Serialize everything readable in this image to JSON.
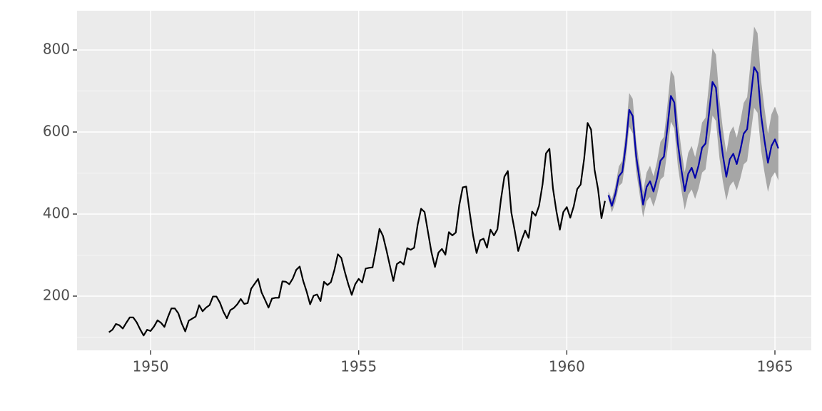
{
  "chart_data": {
    "type": "line",
    "xlim": [
      1948.234,
      1965.874
    ],
    "ylim": [
      67.8,
      895.7
    ],
    "xticks": [
      1950,
      1955,
      1960,
      1965
    ],
    "yticks": [
      200,
      400,
      600,
      800
    ],
    "xminor": [
      1952.5,
      1957.5,
      1962.5
    ],
    "yminor": [
      100,
      300,
      500,
      700
    ],
    "grid": true,
    "series": [
      {
        "color": "#000000",
        "x": [
          1949,
          1949.083,
          1949.167,
          1949.25,
          1949.333,
          1949.417,
          1949.5,
          1949.583,
          1949.667,
          1949.75,
          1949.833,
          1949.917,
          1950,
          1950.083,
          1950.167,
          1950.25,
          1950.333,
          1950.417,
          1950.5,
          1950.583,
          1950.667,
          1950.75,
          1950.833,
          1950.917,
          1951,
          1951.083,
          1951.167,
          1951.25,
          1951.333,
          1951.417,
          1951.5,
          1951.583,
          1951.667,
          1951.75,
          1951.833,
          1951.917,
          1952,
          1952.083,
          1952.167,
          1952.25,
          1952.333,
          1952.417,
          1952.5,
          1952.583,
          1952.667,
          1952.75,
          1952.833,
          1952.917,
          1953,
          1953.083,
          1953.167,
          1953.25,
          1953.333,
          1953.417,
          1953.5,
          1953.583,
          1953.667,
          1953.75,
          1953.833,
          1953.917,
          1954,
          1954.083,
          1954.167,
          1954.25,
          1954.333,
          1954.417,
          1954.5,
          1954.583,
          1954.667,
          1954.75,
          1954.833,
          1954.917,
          1955,
          1955.083,
          1955.167,
          1955.25,
          1955.333,
          1955.417,
          1955.5,
          1955.583,
          1955.667,
          1955.75,
          1955.833,
          1955.917,
          1956,
          1956.083,
          1956.167,
          1956.25,
          1956.333,
          1956.417,
          1956.5,
          1956.583,
          1956.667,
          1956.75,
          1956.833,
          1956.917,
          1957,
          1957.083,
          1957.167,
          1957.25,
          1957.333,
          1957.417,
          1957.5,
          1957.583,
          1957.667,
          1957.75,
          1957.833,
          1957.917,
          1958,
          1958.083,
          1958.167,
          1958.25,
          1958.333,
          1958.417,
          1958.5,
          1958.583,
          1958.667,
          1958.75,
          1958.833,
          1958.917,
          1959,
          1959.083,
          1959.167,
          1959.25,
          1959.333,
          1959.417,
          1959.5,
          1959.583,
          1959.667,
          1959.75,
          1959.833,
          1959.917,
          1960,
          1960.083,
          1960.167,
          1960.25,
          1960.333,
          1960.417,
          1960.5,
          1960.583,
          1960.667,
          1960.75,
          1960.833,
          1960.917
        ],
        "values": [
          112,
          118,
          132,
          129,
          121,
          135,
          148,
          148,
          136,
          119,
          104,
          118,
          115,
          126,
          141,
          135,
          125,
          149,
          170,
          170,
          158,
          133,
          114,
          140,
          145,
          150,
          178,
          163,
          172,
          178,
          199,
          199,
          184,
          162,
          146,
          166,
          171,
          180,
          193,
          181,
          183,
          218,
          230,
          242,
          209,
          191,
          172,
          194,
          196,
          196,
          236,
          235,
          229,
          243,
          264,
          272,
          237,
          211,
          180,
          201,
          204,
          188,
          235,
          227,
          234,
          264,
          302,
          293,
          259,
          229,
          203,
          229,
          242,
          233,
          267,
          269,
          270,
          315,
          364,
          347,
          312,
          274,
          237,
          278,
          284,
          277,
          317,
          313,
          318,
          374,
          413,
          405,
          355,
          306,
          271,
          306,
          315,
          301,
          356,
          348,
          355,
          422,
          465,
          467,
          404,
          347,
          305,
          336,
          340,
          318,
          362,
          348,
          363,
          435,
          491,
          505,
          404,
          359,
          310,
          337,
          360,
          342,
          406,
          396,
          420,
          472,
          548,
          559,
          463,
          407,
          362,
          405,
          417,
          391,
          419,
          461,
          472,
          535,
          622,
          606,
          508,
          461,
          390,
          432
        ]
      },
      {
        "color": "#0000aa",
        "band_color": "#a6a6a6",
        "x": [
          1961,
          1961.083,
          1961.167,
          1961.25,
          1961.333,
          1961.417,
          1961.5,
          1961.583,
          1961.667,
          1961.75,
          1961.833,
          1961.917,
          1962,
          1962.083,
          1962.167,
          1962.25,
          1962.333,
          1962.417,
          1962.5,
          1962.583,
          1962.667,
          1962.75,
          1962.833,
          1962.917,
          1963,
          1963.083,
          1963.167,
          1963.25,
          1963.333,
          1963.417,
          1963.5,
          1963.583,
          1963.667,
          1963.75,
          1963.833,
          1963.917,
          1964,
          1964.083,
          1964.167,
          1964.25,
          1964.333,
          1964.417,
          1964.5,
          1964.583,
          1964.667,
          1964.75,
          1964.833,
          1964.917,
          1965,
          1965.083
        ],
        "values": [
          446,
          420,
          449,
          492,
          503,
          567,
          654,
          639,
          541,
          482,
          423,
          466,
          480,
          455,
          487,
          530,
          540,
          610,
          688,
          672,
          573,
          510,
          456,
          498,
          513,
          488,
          519,
          562,
          572,
          646,
          722,
          708,
          608,
          543,
          491,
          534,
          547,
          522,
          555,
          596,
          607,
          683,
          758,
          744,
          641,
          579,
          525,
          566,
          582,
          560
        ],
        "lower": [
          437,
          404,
          429,
          468,
          476,
          534,
          613,
          597,
          504,
          448,
          392,
          431,
          442,
          418,
          446,
          484,
          492,
          555,
          625,
          609,
          518,
          460,
          410,
          447,
          460,
          437,
          463,
          501,
          509,
          574,
          640,
          627,
          537,
          479,
          433,
          469,
          480,
          458,
          486,
          521,
          529,
          595,
          659,
          647,
          556,
          501,
          454,
          489,
          502,
          482
        ],
        "upper": [
          455,
          436,
          469,
          516,
          530,
          600,
          695,
          681,
          578,
          516,
          454,
          501,
          518,
          492,
          528,
          576,
          588,
          665,
          751,
          735,
          628,
          560,
          502,
          549,
          566,
          539,
          575,
          623,
          635,
          718,
          804,
          789,
          679,
          607,
          549,
          599,
          614,
          586,
          624,
          671,
          685,
          771,
          857,
          841,
          726,
          657,
          596,
          643,
          662,
          638
        ]
      }
    ]
  }
}
